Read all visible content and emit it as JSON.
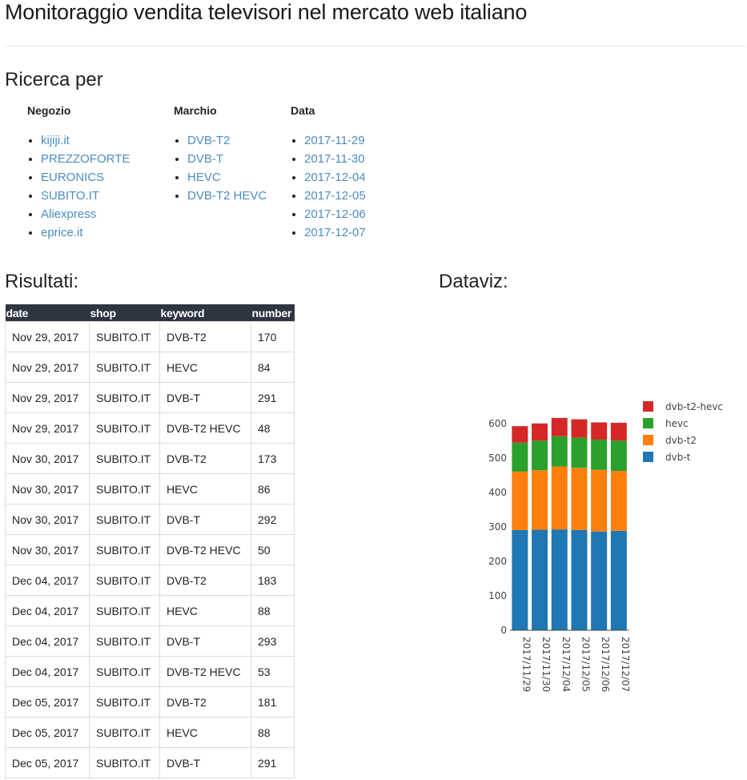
{
  "header": {
    "title": "Monitoraggio vendita televisori nel mercato web italiano"
  },
  "search": {
    "title": "Ricerca per",
    "columns": [
      {
        "heading": "Negozio",
        "items": [
          "kijiji.it",
          "PREZZOFORTE",
          "EURONICS",
          "SUBITO.IT",
          "Aliexpress",
          "eprice.it"
        ]
      },
      {
        "heading": "Marchio",
        "items": [
          "DVB-T2",
          "DVB-T",
          "HEVC",
          "DVB-T2 HEVC"
        ]
      },
      {
        "heading": "Data",
        "items": [
          "2017-11-29",
          "2017-11-30",
          "2017-12-04",
          "2017-12-05",
          "2017-12-06",
          "2017-12-07"
        ]
      }
    ]
  },
  "results": {
    "title": "Risultati:",
    "headers": [
      "date",
      "shop",
      "keyword",
      "number"
    ],
    "rows": [
      [
        "Nov 29, 2017",
        "SUBITO.IT",
        "DVB-T2",
        "170"
      ],
      [
        "Nov 29, 2017",
        "SUBITO.IT",
        "HEVC",
        "84"
      ],
      [
        "Nov 29, 2017",
        "SUBITO.IT",
        "DVB-T",
        "291"
      ],
      [
        "Nov 29, 2017",
        "SUBITO.IT",
        "DVB-T2 HEVC",
        "48"
      ],
      [
        "Nov 30, 2017",
        "SUBITO.IT",
        "DVB-T2",
        "173"
      ],
      [
        "Nov 30, 2017",
        "SUBITO.IT",
        "HEVC",
        "86"
      ],
      [
        "Nov 30, 2017",
        "SUBITO.IT",
        "DVB-T",
        "292"
      ],
      [
        "Nov 30, 2017",
        "SUBITO.IT",
        "DVB-T2 HEVC",
        "50"
      ],
      [
        "Dec 04, 2017",
        "SUBITO.IT",
        "DVB-T2",
        "183"
      ],
      [
        "Dec 04, 2017",
        "SUBITO.IT",
        "HEVC",
        "88"
      ],
      [
        "Dec 04, 2017",
        "SUBITO.IT",
        "DVB-T",
        "293"
      ],
      [
        "Dec 04, 2017",
        "SUBITO.IT",
        "DVB-T2 HEVC",
        "53"
      ],
      [
        "Dec 05, 2017",
        "SUBITO.IT",
        "DVB-T2",
        "181"
      ],
      [
        "Dec 05, 2017",
        "SUBITO.IT",
        "HEVC",
        "88"
      ],
      [
        "Dec 05, 2017",
        "SUBITO.IT",
        "DVB-T",
        "291"
      ]
    ]
  },
  "dataviz": {
    "title": "Dataviz:"
  },
  "chart_data": {
    "type": "bar",
    "stacked": true,
    "categories": [
      "2017/11/29",
      "2017/11/30",
      "2017/12/04",
      "2017/12/05",
      "2017/12/06",
      "2017/12/07"
    ],
    "series": [
      {
        "name": "dvb-t",
        "color": "#1f77b4",
        "values": [
          291,
          292,
          293,
          291,
          287,
          289
        ]
      },
      {
        "name": "dvb-t2",
        "color": "#ff7f0e",
        "values": [
          170,
          173,
          183,
          181,
          179,
          174
        ]
      },
      {
        "name": "hevc",
        "color": "#2ca02c",
        "values": [
          84,
          86,
          88,
          88,
          88,
          88
        ]
      },
      {
        "name": "dvb-t2-hevc",
        "color": "#d62728",
        "values": [
          48,
          50,
          53,
          53,
          50,
          52
        ]
      }
    ],
    "yticks": [
      0,
      100,
      200,
      300,
      400,
      500,
      600
    ],
    "ylim": [
      0,
      640
    ],
    "legend": "right",
    "legend_order": [
      "dvb-t2-hevc",
      "hevc",
      "dvb-t2",
      "dvb-t"
    ]
  }
}
